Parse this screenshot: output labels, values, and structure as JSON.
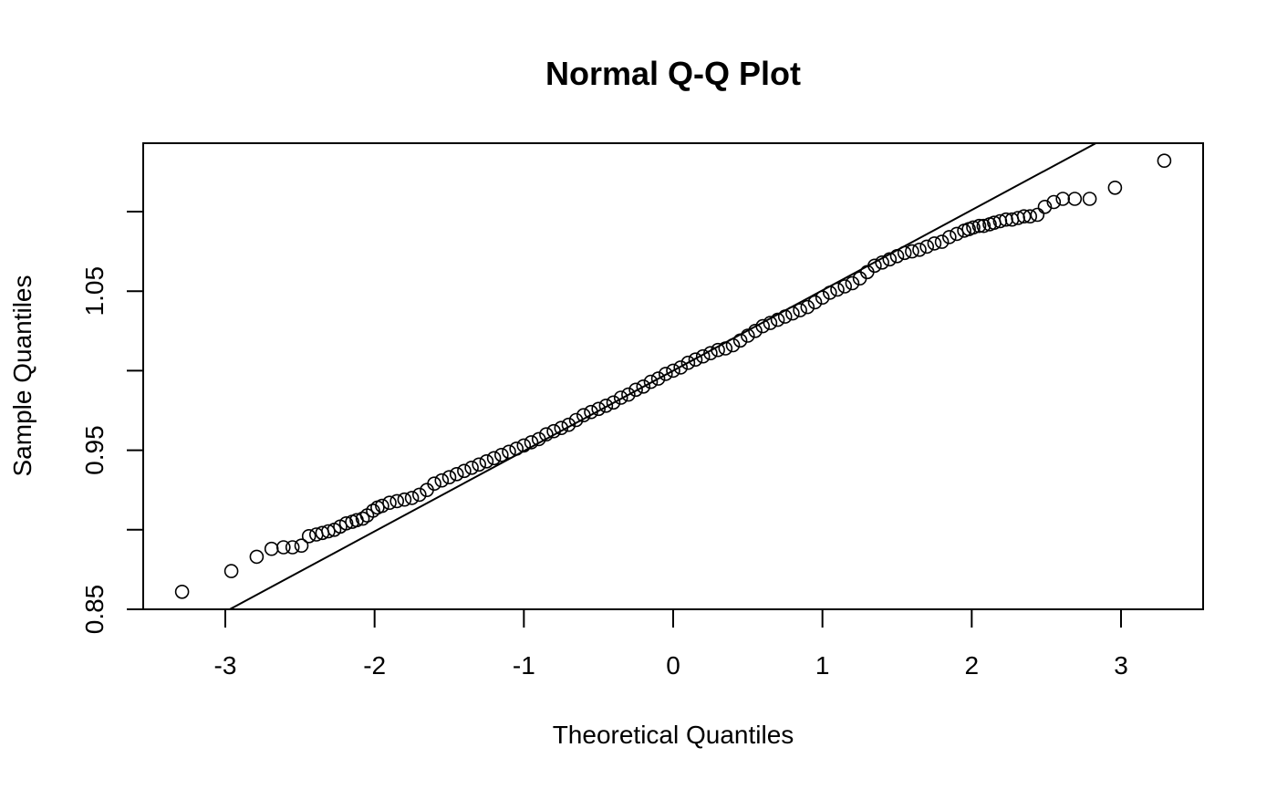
{
  "chart_data": {
    "type": "scatter",
    "title": "Normal Q-Q Plot",
    "xlabel": "Theoretical Quantiles",
    "ylabel": "Sample Quantiles",
    "xlim": [
      -3.55,
      3.55
    ],
    "ylim": [
      0.85,
      1.143
    ],
    "xticks": [
      {
        "value": -3,
        "label": "-3"
      },
      {
        "value": -2,
        "label": "-2"
      },
      {
        "value": -1,
        "label": "-1"
      },
      {
        "value": 0,
        "label": "0"
      },
      {
        "value": 1,
        "label": "1"
      },
      {
        "value": 2,
        "label": "2"
      },
      {
        "value": 3,
        "label": "3"
      }
    ],
    "yticks": [
      {
        "value": 0.85,
        "label": "0.85"
      },
      {
        "value": 0.9,
        "label": ""
      },
      {
        "value": 0.95,
        "label": "0.95"
      },
      {
        "value": 1.0,
        "label": ""
      },
      {
        "value": 1.05,
        "label": "1.05"
      },
      {
        "value": 1.1,
        "label": ""
      }
    ],
    "reference_line": {
      "intercept": 1.0,
      "slope": 0.0505
    },
    "points": [
      [
        -3.29,
        0.861
      ],
      [
        -2.96,
        0.874
      ],
      [
        -2.79,
        0.883
      ],
      [
        -2.69,
        0.888
      ],
      [
        -2.61,
        0.889
      ],
      [
        -2.55,
        0.889
      ],
      [
        -2.49,
        0.89
      ],
      [
        -2.44,
        0.896
      ],
      [
        -2.39,
        0.897
      ],
      [
        -2.35,
        0.898
      ],
      [
        -2.31,
        0.899
      ],
      [
        -2.27,
        0.9
      ],
      [
        -2.23,
        0.902
      ],
      [
        -2.19,
        0.904
      ],
      [
        -2.15,
        0.905
      ],
      [
        -2.12,
        0.906
      ],
      [
        -2.08,
        0.907
      ],
      [
        -2.05,
        0.909
      ],
      [
        -2.01,
        0.912
      ],
      [
        -1.98,
        0.914
      ],
      [
        -1.95,
        0.915
      ],
      [
        -1.9,
        0.917
      ],
      [
        -1.85,
        0.918
      ],
      [
        -1.8,
        0.919
      ],
      [
        -1.75,
        0.92
      ],
      [
        -1.7,
        0.922
      ],
      [
        -1.65,
        0.925
      ],
      [
        -1.6,
        0.929
      ],
      [
        -1.55,
        0.931
      ],
      [
        -1.5,
        0.933
      ],
      [
        -1.45,
        0.935
      ],
      [
        -1.4,
        0.937
      ],
      [
        -1.35,
        0.939
      ],
      [
        -1.3,
        0.941
      ],
      [
        -1.25,
        0.943
      ],
      [
        -1.2,
        0.945
      ],
      [
        -1.15,
        0.947
      ],
      [
        -1.1,
        0.949
      ],
      [
        -1.05,
        0.951
      ],
      [
        -1.0,
        0.953
      ],
      [
        -0.95,
        0.955
      ],
      [
        -0.9,
        0.957
      ],
      [
        -0.85,
        0.96
      ],
      [
        -0.8,
        0.962
      ],
      [
        -0.75,
        0.964
      ],
      [
        -0.7,
        0.966
      ],
      [
        -0.65,
        0.969
      ],
      [
        -0.6,
        0.972
      ],
      [
        -0.55,
        0.974
      ],
      [
        -0.5,
        0.976
      ],
      [
        -0.45,
        0.978
      ],
      [
        -0.4,
        0.98
      ],
      [
        -0.35,
        0.983
      ],
      [
        -0.3,
        0.985
      ],
      [
        -0.25,
        0.988
      ],
      [
        -0.2,
        0.99
      ],
      [
        -0.15,
        0.993
      ],
      [
        -0.1,
        0.995
      ],
      [
        -0.05,
        0.998
      ],
      [
        0.0,
        1.0
      ],
      [
        0.05,
        1.002
      ],
      [
        0.1,
        1.005
      ],
      [
        0.15,
        1.007
      ],
      [
        0.2,
        1.009
      ],
      [
        0.25,
        1.011
      ],
      [
        0.3,
        1.013
      ],
      [
        0.35,
        1.014
      ],
      [
        0.4,
        1.016
      ],
      [
        0.45,
        1.019
      ],
      [
        0.5,
        1.022
      ],
      [
        0.55,
        1.025
      ],
      [
        0.6,
        1.028
      ],
      [
        0.65,
        1.03
      ],
      [
        0.7,
        1.032
      ],
      [
        0.75,
        1.034
      ],
      [
        0.8,
        1.036
      ],
      [
        0.85,
        1.038
      ],
      [
        0.9,
        1.04
      ],
      [
        0.95,
        1.043
      ],
      [
        1.0,
        1.046
      ],
      [
        1.05,
        1.049
      ],
      [
        1.1,
        1.051
      ],
      [
        1.15,
        1.053
      ],
      [
        1.2,
        1.055
      ],
      [
        1.25,
        1.058
      ],
      [
        1.3,
        1.062
      ],
      [
        1.35,
        1.066
      ],
      [
        1.4,
        1.068
      ],
      [
        1.45,
        1.07
      ],
      [
        1.5,
        1.072
      ],
      [
        1.55,
        1.074
      ],
      [
        1.6,
        1.075
      ],
      [
        1.65,
        1.076
      ],
      [
        1.7,
        1.078
      ],
      [
        1.75,
        1.08
      ],
      [
        1.8,
        1.081
      ],
      [
        1.85,
        1.084
      ],
      [
        1.9,
        1.086
      ],
      [
        1.95,
        1.088
      ],
      [
        1.98,
        1.089
      ],
      [
        2.01,
        1.09
      ],
      [
        2.05,
        1.091
      ],
      [
        2.08,
        1.091
      ],
      [
        2.12,
        1.092
      ],
      [
        2.15,
        1.093
      ],
      [
        2.19,
        1.094
      ],
      [
        2.23,
        1.095
      ],
      [
        2.27,
        1.095
      ],
      [
        2.31,
        1.096
      ],
      [
        2.35,
        1.097
      ],
      [
        2.39,
        1.097
      ],
      [
        2.44,
        1.098
      ],
      [
        2.49,
        1.103
      ],
      [
        2.55,
        1.106
      ],
      [
        2.61,
        1.108
      ],
      [
        2.69,
        1.108
      ],
      [
        2.79,
        1.108
      ],
      [
        2.96,
        1.115
      ],
      [
        3.29,
        1.132
      ]
    ]
  }
}
